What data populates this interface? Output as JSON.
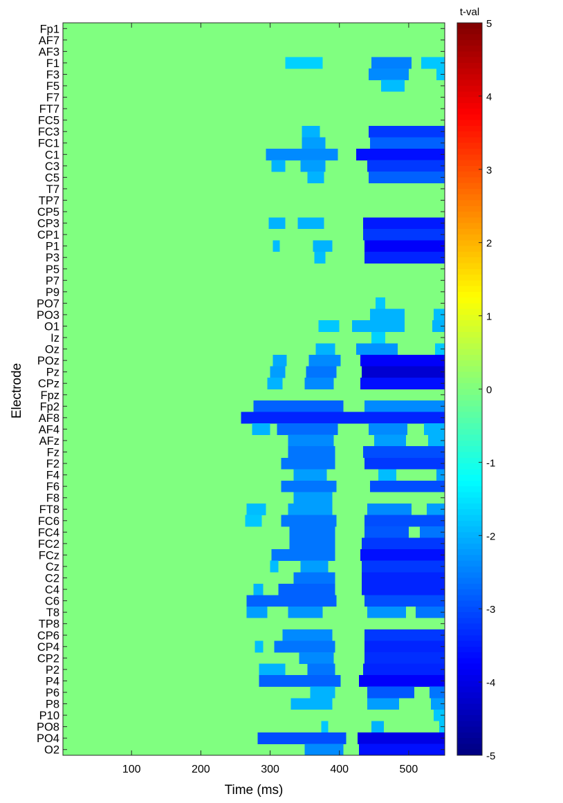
{
  "chart_data": {
    "type": "heatmap",
    "xlabel": "Time (ms)",
    "ylabel": "Electrode",
    "colorbar_label": "t-val",
    "xlim": [
      1,
      552
    ],
    "x_ticks": [
      100,
      200,
      300,
      400,
      500
    ],
    "clim": [
      -5,
      5
    ],
    "colorbar_ticks": [
      5,
      4,
      3,
      2,
      1,
      0,
      -1,
      -2,
      -3,
      -4,
      -5
    ],
    "colormap": "jet",
    "background_value": 0,
    "electrodes": [
      "Fp1",
      "AF7",
      "AF3",
      "F1",
      "F3",
      "F5",
      "F7",
      "FT7",
      "FC5",
      "FC3",
      "FC1",
      "C1",
      "C3",
      "C5",
      "T7",
      "TP7",
      "CP5",
      "CP3",
      "CP1",
      "P1",
      "P3",
      "P5",
      "P7",
      "P9",
      "PO7",
      "PO3",
      "O1",
      "Iz",
      "Oz",
      "POz",
      "Pz",
      "CPz",
      "Fpz",
      "Fp2",
      "AF8",
      "AF4",
      "AFz",
      "Fz",
      "F2",
      "F4",
      "F6",
      "F8",
      "FT8",
      "FC6",
      "FC4",
      "FC2",
      "FCz",
      "Cz",
      "C2",
      "C4",
      "C6",
      "T8",
      "TP8",
      "CP6",
      "CP4",
      "CP2",
      "P2",
      "P4",
      "P6",
      "P8",
      "P10",
      "PO8",
      "PO4",
      "O2"
    ],
    "segments": [
      {
        "electrode": "F1",
        "t0": 322,
        "t1": 376,
        "value": -1.7
      },
      {
        "electrode": "F1",
        "t0": 446,
        "t1": 504,
        "value": -2.5
      },
      {
        "electrode": "F1",
        "t0": 518,
        "t1": 552,
        "value": -1.8
      },
      {
        "electrode": "F3",
        "t0": 442,
        "t1": 500,
        "value": -2.4
      },
      {
        "electrode": "F3",
        "t0": 540,
        "t1": 552,
        "value": -1.8
      },
      {
        "electrode": "F5",
        "t0": 460,
        "t1": 494,
        "value": -1.9
      },
      {
        "electrode": "FC3",
        "t0": 346,
        "t1": 372,
        "value": -2.0
      },
      {
        "electrode": "FC3",
        "t0": 442,
        "t1": 552,
        "value": -3.2
      },
      {
        "electrode": "FC1",
        "t0": 346,
        "t1": 380,
        "value": -2.2
      },
      {
        "electrode": "FC1",
        "t0": 444,
        "t1": 552,
        "value": -2.8
      },
      {
        "electrode": "C1",
        "t0": 294,
        "t1": 398,
        "value": -2.4
      },
      {
        "electrode": "C1",
        "t0": 424,
        "t1": 552,
        "value": -3.6
      },
      {
        "electrode": "C3",
        "t0": 302,
        "t1": 322,
        "value": -2.0
      },
      {
        "electrode": "C3",
        "t0": 344,
        "t1": 380,
        "value": -2.2
      },
      {
        "electrode": "C3",
        "t0": 440,
        "t1": 552,
        "value": -3.2
      },
      {
        "electrode": "C5",
        "t0": 354,
        "t1": 378,
        "value": -2.0
      },
      {
        "electrode": "C5",
        "t0": 442,
        "t1": 552,
        "value": -2.8
      },
      {
        "electrode": "CP3",
        "t0": 298,
        "t1": 322,
        "value": -2.0
      },
      {
        "electrode": "CP3",
        "t0": 340,
        "t1": 378,
        "value": -2.0
      },
      {
        "electrode": "CP3",
        "t0": 434,
        "t1": 552,
        "value": -3.5
      },
      {
        "electrode": "CP1",
        "t0": 434,
        "t1": 552,
        "value": -3.2
      },
      {
        "electrode": "P1",
        "t0": 304,
        "t1": 314,
        "value": -1.9
      },
      {
        "electrode": "P1",
        "t0": 362,
        "t1": 390,
        "value": -2.0
      },
      {
        "electrode": "P1",
        "t0": 436,
        "t1": 552,
        "value": -3.8
      },
      {
        "electrode": "P3",
        "t0": 364,
        "t1": 380,
        "value": -1.9
      },
      {
        "electrode": "P3",
        "t0": 436,
        "t1": 552,
        "value": -3.4
      },
      {
        "electrode": "PO7",
        "t0": 452,
        "t1": 466,
        "value": -1.8
      },
      {
        "electrode": "PO3",
        "t0": 444,
        "t1": 494,
        "value": -2.0
      },
      {
        "electrode": "PO3",
        "t0": 536,
        "t1": 552,
        "value": -1.9
      },
      {
        "electrode": "O1",
        "t0": 370,
        "t1": 400,
        "value": -1.8
      },
      {
        "electrode": "O1",
        "t0": 418,
        "t1": 494,
        "value": -2.0
      },
      {
        "electrode": "O1",
        "t0": 534,
        "t1": 552,
        "value": -2.0
      },
      {
        "electrode": "Iz",
        "t0": 446,
        "t1": 466,
        "value": -1.7
      },
      {
        "electrode": "Oz",
        "t0": 366,
        "t1": 394,
        "value": -2.0
      },
      {
        "electrode": "Oz",
        "t0": 424,
        "t1": 484,
        "value": -2.3
      },
      {
        "electrode": "Oz",
        "t0": 538,
        "t1": 552,
        "value": -1.8
      },
      {
        "electrode": "POz",
        "t0": 304,
        "t1": 324,
        "value": -2.1
      },
      {
        "electrode": "POz",
        "t0": 356,
        "t1": 402,
        "value": -2.4
      },
      {
        "electrode": "POz",
        "t0": 430,
        "t1": 552,
        "value": -3.8
      },
      {
        "electrode": "Pz",
        "t0": 300,
        "t1": 322,
        "value": -2.2
      },
      {
        "electrode": "Pz",
        "t0": 352,
        "t1": 396,
        "value": -2.6
      },
      {
        "electrode": "Pz",
        "t0": 432,
        "t1": 552,
        "value": -4.2
      },
      {
        "electrode": "CPz",
        "t0": 296,
        "t1": 318,
        "value": -2.0
      },
      {
        "electrode": "CPz",
        "t0": 350,
        "t1": 392,
        "value": -2.4
      },
      {
        "electrode": "CPz",
        "t0": 430,
        "t1": 552,
        "value": -3.6
      },
      {
        "electrode": "Fp2",
        "t0": 276,
        "t1": 406,
        "value": -2.8
      },
      {
        "electrode": "Fp2",
        "t0": 436,
        "t1": 552,
        "value": -2.4
      },
      {
        "electrode": "AF8",
        "t0": 258,
        "t1": 552,
        "value": -3.4
      },
      {
        "electrode": "AF4",
        "t0": 274,
        "t1": 300,
        "value": -2.0
      },
      {
        "electrode": "AF4",
        "t0": 310,
        "t1": 398,
        "value": -2.7
      },
      {
        "electrode": "AF4",
        "t0": 442,
        "t1": 498,
        "value": -2.4
      },
      {
        "electrode": "AF4",
        "t0": 522,
        "t1": 552,
        "value": -2.0
      },
      {
        "electrode": "AFz",
        "t0": 326,
        "t1": 392,
        "value": -2.4
      },
      {
        "electrode": "AFz",
        "t0": 450,
        "t1": 496,
        "value": -2.2
      },
      {
        "electrode": "AFz",
        "t0": 528,
        "t1": 552,
        "value": -2.0
      },
      {
        "electrode": "Fz",
        "t0": 326,
        "t1": 394,
        "value": -2.6
      },
      {
        "electrode": "Fz",
        "t0": 434,
        "t1": 552,
        "value": -3.0
      },
      {
        "electrode": "F2",
        "t0": 316,
        "t1": 394,
        "value": -2.6
      },
      {
        "electrode": "F2",
        "t0": 436,
        "t1": 552,
        "value": -3.2
      },
      {
        "electrode": "F4",
        "t0": 334,
        "t1": 382,
        "value": -2.2
      },
      {
        "electrode": "F4",
        "t0": 456,
        "t1": 482,
        "value": -1.9
      },
      {
        "electrode": "F4",
        "t0": 540,
        "t1": 552,
        "value": -2.2
      },
      {
        "electrode": "F6",
        "t0": 316,
        "t1": 396,
        "value": -2.6
      },
      {
        "electrode": "F6",
        "t0": 444,
        "t1": 552,
        "value": -3.0
      },
      {
        "electrode": "F8",
        "t0": 334,
        "t1": 390,
        "value": -2.2
      },
      {
        "electrode": "FT8",
        "t0": 266,
        "t1": 294,
        "value": -1.9
      },
      {
        "electrode": "FT8",
        "t0": 326,
        "t1": 390,
        "value": -2.2
      },
      {
        "electrode": "FT8",
        "t0": 440,
        "t1": 504,
        "value": -2.4
      },
      {
        "electrode": "FT8",
        "t0": 526,
        "t1": 552,
        "value": -2.2
      },
      {
        "electrode": "FC6",
        "t0": 264,
        "t1": 288,
        "value": -1.8
      },
      {
        "electrode": "FC6",
        "t0": 316,
        "t1": 396,
        "value": -2.6
      },
      {
        "electrode": "FC6",
        "t0": 436,
        "t1": 552,
        "value": -3.0
      },
      {
        "electrode": "FC4",
        "t0": 328,
        "t1": 394,
        "value": -2.6
      },
      {
        "electrode": "FC4",
        "t0": 436,
        "t1": 500,
        "value": -2.9
      },
      {
        "electrode": "FC4",
        "t0": 516,
        "t1": 552,
        "value": -2.6
      },
      {
        "electrode": "FC2",
        "t0": 328,
        "t1": 394,
        "value": -2.6
      },
      {
        "electrode": "FC2",
        "t0": 432,
        "t1": 552,
        "value": -3.2
      },
      {
        "electrode": "FCz",
        "t0": 302,
        "t1": 394,
        "value": -2.6
      },
      {
        "electrode": "FCz",
        "t0": 430,
        "t1": 552,
        "value": -3.6
      },
      {
        "electrode": "Cz",
        "t0": 300,
        "t1": 312,
        "value": -1.9
      },
      {
        "electrode": "Cz",
        "t0": 344,
        "t1": 384,
        "value": -2.2
      },
      {
        "electrode": "Cz",
        "t0": 432,
        "t1": 552,
        "value": -3.2
      },
      {
        "electrode": "C2",
        "t0": 334,
        "t1": 394,
        "value": -2.6
      },
      {
        "electrode": "C2",
        "t0": 432,
        "t1": 552,
        "value": -3.4
      },
      {
        "electrode": "C4",
        "t0": 276,
        "t1": 290,
        "value": -2.0
      },
      {
        "electrode": "C4",
        "t0": 312,
        "t1": 394,
        "value": -2.8
      },
      {
        "electrode": "C4",
        "t0": 432,
        "t1": 552,
        "value": -3.4
      },
      {
        "electrode": "C6",
        "t0": 266,
        "t1": 396,
        "value": -2.8
      },
      {
        "electrode": "C6",
        "t0": 436,
        "t1": 552,
        "value": -3.0
      },
      {
        "electrode": "T8",
        "t0": 266,
        "t1": 296,
        "value": -2.2
      },
      {
        "electrode": "T8",
        "t0": 326,
        "t1": 376,
        "value": -2.3
      },
      {
        "electrode": "T8",
        "t0": 440,
        "t1": 496,
        "value": -2.3
      },
      {
        "electrode": "T8",
        "t0": 510,
        "t1": 552,
        "value": -2.6
      },
      {
        "electrode": "CP6",
        "t0": 318,
        "t1": 390,
        "value": -2.4
      },
      {
        "electrode": "CP6",
        "t0": 436,
        "t1": 552,
        "value": -3.2
      },
      {
        "electrode": "CP4",
        "t0": 278,
        "t1": 290,
        "value": -1.9
      },
      {
        "electrode": "CP4",
        "t0": 306,
        "t1": 394,
        "value": -2.6
      },
      {
        "electrode": "CP4",
        "t0": 436,
        "t1": 552,
        "value": -3.4
      },
      {
        "electrode": "CP2",
        "t0": 342,
        "t1": 392,
        "value": -2.4
      },
      {
        "electrode": "CP2",
        "t0": 436,
        "t1": 552,
        "value": -3.3
      },
      {
        "electrode": "P2",
        "t0": 284,
        "t1": 322,
        "value": -2.0
      },
      {
        "electrode": "P2",
        "t0": 354,
        "t1": 394,
        "value": -2.6
      },
      {
        "electrode": "P2",
        "t0": 434,
        "t1": 552,
        "value": -3.4
      },
      {
        "electrode": "P4",
        "t0": 284,
        "t1": 402,
        "value": -2.8
      },
      {
        "electrode": "P4",
        "t0": 428,
        "t1": 552,
        "value": -3.8
      },
      {
        "electrode": "P6",
        "t0": 358,
        "t1": 394,
        "value": -2.0
      },
      {
        "electrode": "P6",
        "t0": 440,
        "t1": 508,
        "value": -2.9
      },
      {
        "electrode": "P6",
        "t0": 530,
        "t1": 552,
        "value": -2.6
      },
      {
        "electrode": "P8",
        "t0": 330,
        "t1": 390,
        "value": -2.0
      },
      {
        "electrode": "P8",
        "t0": 440,
        "t1": 486,
        "value": -2.2
      },
      {
        "electrode": "P8",
        "t0": 532,
        "t1": 552,
        "value": -2.2
      },
      {
        "electrode": "P10",
        "t0": 536,
        "t1": 552,
        "value": -1.8
      },
      {
        "electrode": "PO8",
        "t0": 374,
        "t1": 384,
        "value": -1.8
      },
      {
        "electrode": "PO8",
        "t0": 446,
        "t1": 464,
        "value": -2.0
      },
      {
        "electrode": "PO8",
        "t0": 544,
        "t1": 552,
        "value": -1.8
      },
      {
        "electrode": "PO4",
        "t0": 282,
        "t1": 410,
        "value": -3.0
      },
      {
        "electrode": "PO4",
        "t0": 426,
        "t1": 552,
        "value": -4.0
      },
      {
        "electrode": "O2",
        "t0": 350,
        "t1": 406,
        "value": -2.4
      },
      {
        "electrode": "O2",
        "t0": 428,
        "t1": 552,
        "value": -3.6
      }
    ]
  }
}
